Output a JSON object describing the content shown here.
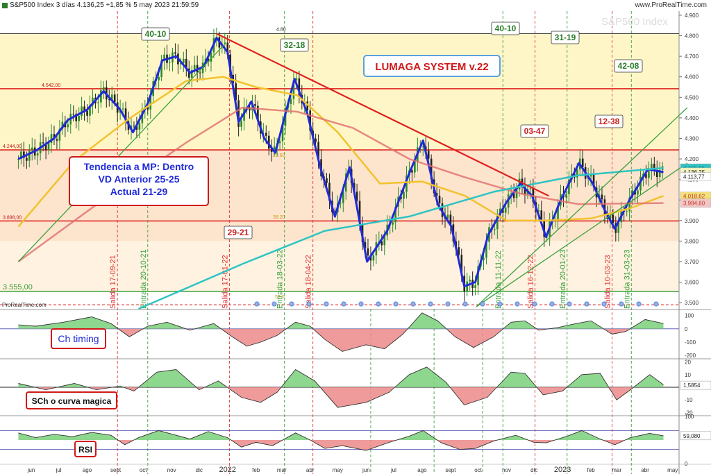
{
  "header": {
    "title": "S&P500 Index 3 días 4.136,25 +1,85 % 5 may 2023 21:59:59",
    "url": "www.ProRealTime.com",
    "watermark": "S&P500 Index"
  },
  "chart_data": {
    "type": "line",
    "instrument": "S&P500 Index",
    "timeframe": "3 días",
    "x_labels": [
      "jun",
      "jul",
      "ago",
      "sept",
      "oct",
      "nov",
      "dic",
      "2022",
      "feb",
      "mar",
      "abr",
      "may",
      "jun",
      "jul",
      "ago",
      "sept",
      "oct",
      "nov",
      "dic",
      "2023",
      "feb",
      "mar",
      "abr",
      "may"
    ],
    "y_ticks": [
      "3.500",
      "3.600",
      "3.700",
      "3.800",
      "3.900",
      "4.000",
      "4.100",
      "4.200",
      "4.300",
      "4.400",
      "4.500",
      "4.600",
      "4.700",
      "4.800",
      "4.900"
    ],
    "ylim": [
      3470,
      4920
    ],
    "price_tags": [
      "4.155,96",
      "4.136,25",
      "4.113,77",
      "4.018,62",
      "3.984,60"
    ],
    "horizontal_levels": [
      {
        "label": "4.542,00",
        "value": 4542
      },
      {
        "label": "4.244,00",
        "value": 4244
      },
      {
        "label": "3.898,00",
        "value": 3898
      },
      {
        "label": "3.555,00",
        "value": 3555
      }
    ],
    "inner_labels": [
      "4.80",
      "23.60",
      "38.20",
      "50.0"
    ],
    "price_series": [
      {
        "name": "",
        "color": "#1f2bd8",
        "values": [
          [
            "2021-06-01",
            4200
          ],
          [
            "2021-06-20",
            4240
          ],
          [
            "2021-07-10",
            4300
          ],
          [
            "2021-07-25",
            4390
          ],
          [
            "2021-08-15",
            4440
          ],
          [
            "2021-09-02",
            4530
          ],
          [
            "2021-09-20",
            4440
          ],
          [
            "2021-10-04",
            4330
          ],
          [
            "2021-10-20",
            4470
          ],
          [
            "2021-11-05",
            4680
          ],
          [
            "2021-11-20",
            4700
          ],
          [
            "2021-12-05",
            4620
          ],
          [
            "2021-12-20",
            4650
          ],
          [
            "2022-01-03",
            4790
          ],
          [
            "2022-01-15",
            4720
          ],
          [
            "2022-01-27",
            4380
          ],
          [
            "2022-02-10",
            4480
          ],
          [
            "2022-02-24",
            4300
          ],
          [
            "2022-03-08",
            4230
          ],
          [
            "2022-03-29",
            4590
          ],
          [
            "2022-04-12",
            4420
          ],
          [
            "2022-04-26",
            4160
          ],
          [
            "2022-05-12",
            3920
          ],
          [
            "2022-05-28",
            4160
          ],
          [
            "2022-06-16",
            3700
          ],
          [
            "2022-07-08",
            3850
          ],
          [
            "2022-08-01",
            4130
          ],
          [
            "2022-08-16",
            4290
          ],
          [
            "2022-09-01",
            3980
          ],
          [
            "2022-09-16",
            3870
          ],
          [
            "2022-09-30",
            3580
          ],
          [
            "2022-10-12",
            3600
          ],
          [
            "2022-10-26",
            3830
          ],
          [
            "2022-11-15",
            3990
          ],
          [
            "2022-11-30",
            4080
          ],
          [
            "2022-12-13",
            4020
          ],
          [
            "2022-12-28",
            3820
          ],
          [
            "2023-01-12",
            3990
          ],
          [
            "2023-02-02",
            4180
          ],
          [
            "2023-02-17",
            4080
          ],
          [
            "2023-03-01",
            3960
          ],
          [
            "2023-03-13",
            3860
          ],
          [
            "2023-03-29",
            4000
          ],
          [
            "2023-04-18",
            4150
          ],
          [
            "2023-05-05",
            4136
          ]
        ]
      },
      {
        "name": "",
        "color": "#f2c22e",
        "values": [
          [
            "2021-06-01",
            3870
          ],
          [
            "2021-08-01",
            4190
          ],
          [
            "2021-10-01",
            4400
          ],
          [
            "2021-12-01",
            4580
          ],
          [
            "2022-01-10",
            4600
          ],
          [
            "2022-02-15",
            4550
          ],
          [
            "2022-04-01",
            4510
          ],
          [
            "2022-05-15",
            4330
          ],
          [
            "2022-06-30",
            4080
          ],
          [
            "2022-08-15",
            4090
          ],
          [
            "2022-10-01",
            4020
          ],
          [
            "2022-11-15",
            3900
          ],
          [
            "2022-12-30",
            3900
          ],
          [
            "2023-02-15",
            3910
          ],
          [
            "2023-03-30",
            3960
          ],
          [
            "2023-05-05",
            4020
          ]
        ]
      },
      {
        "name": "",
        "color": "#e06e6e",
        "values": [
          [
            "2021-06-01",
            3700
          ],
          [
            "2021-09-01",
            4000
          ],
          [
            "2021-12-01",
            4280
          ],
          [
            "2022-01-31",
            4450
          ],
          [
            "2022-04-01",
            4430
          ],
          [
            "2022-06-01",
            4350
          ],
          [
            "2022-08-01",
            4200
          ],
          [
            "2022-10-01",
            4110
          ],
          [
            "2022-12-01",
            4030
          ],
          [
            "2023-02-01",
            3980
          ],
          [
            "2023-05-05",
            3985
          ]
        ]
      },
      {
        "name": "",
        "color": "#2ec4c4",
        "values": [
          [
            "2021-10-10",
            3470
          ],
          [
            "2022-02-01",
            3690
          ],
          [
            "2022-05-01",
            3850
          ],
          [
            "2022-08-01",
            3920
          ],
          [
            "2022-11-01",
            4040
          ],
          [
            "2023-02-01",
            4120
          ],
          [
            "2023-05-05",
            4156
          ]
        ]
      }
    ],
    "trendlines": [
      {
        "color": "#e02020",
        "from": [
          "2022-01-03",
          4810
        ],
        "to": [
          "2022-12-31",
          4020
        ]
      },
      {
        "color": "#3aa13a",
        "from": [
          "2022-10-13",
          3480
        ],
        "to": [
          "2023-05-31",
          4450
        ]
      },
      {
        "color": "#3aa13a",
        "from": [
          "2022-10-13",
          3480
        ],
        "to": [
          "2023-05-31",
          4180
        ]
      },
      {
        "color": "#3aa13a",
        "from": [
          "2021-06-01",
          3700
        ],
        "to": [
          "2022-01-10",
          4750
        ]
      }
    ],
    "vertical_markers": [
      {
        "label": "Salida 17-09-21",
        "date": "2021-09-17",
        "color": "#e03030"
      },
      {
        "label": "Entrada 20-10-21",
        "date": "2021-10-20",
        "color": "#3aa13a"
      },
      {
        "label": "Salida 17-01-22",
        "date": "2022-01-17",
        "color": "#e03030"
      },
      {
        "label": "Entrada 18-03-22",
        "date": "2022-03-18",
        "color": "#3aa13a"
      },
      {
        "label": "Salida 18-04-22",
        "date": "2022-04-18",
        "color": "#e03030"
      },
      {
        "label": "Entrada 11-11-22",
        "date": "2022-11-11",
        "color": "#3aa13a"
      },
      {
        "label": "Salida 16-12-22",
        "date": "2022-12-16",
        "color": "#e03030"
      },
      {
        "label": "Entrada 20-01-23",
        "date": "2023-01-20",
        "color": "#3aa13a"
      },
      {
        "label": "Salida 10-03-23",
        "date": "2023-03-10",
        "color": "#e03030"
      },
      {
        "label": "Entrada 31-03-23",
        "date": "2023-03-31",
        "color": "#3aa13a"
      }
    ],
    "cycle_markers": [
      "2022-06-20",
      "2022-08-28",
      "2022-10-20"
    ],
    "boxes": [
      {
        "text": "40-10",
        "color": "#2a7d2a"
      },
      {
        "text": "32-18",
        "color": "#2a7d2a"
      },
      {
        "text": "40-10",
        "color": "#2a7d2a"
      },
      {
        "text": "31-19",
        "color": "#2a7d2a"
      },
      {
        "text": "42-08",
        "color": "#2a7d2a"
      },
      {
        "text": "29-21",
        "color": "#c82020"
      },
      {
        "text": "03-47",
        "color": "#c82020"
      },
      {
        "text": "12-38",
        "color": "#c82020"
      }
    ],
    "title_box": {
      "text": "LUMAGA SYSTEM v.22",
      "color": "#d01818"
    },
    "info_box": {
      "lines": [
        "Tendencia a MP: Dentro",
        "VD Anterior 25-25",
        "Actual 21-29"
      ],
      "color": "#1f2bd8"
    },
    "watermark_small": "ProRealTime.com",
    "panels": [
      {
        "name": "Ch timing",
        "ticks": [
          "100",
          "0",
          "-100",
          "-200"
        ],
        "ylim": [
          -220,
          140
        ],
        "tag": "",
        "values": [
          [
            "2021-06-01",
            30
          ],
          [
            "2021-06-20",
            20
          ],
          [
            "2021-07-20",
            50
          ],
          [
            "2021-08-20",
            90
          ],
          [
            "2021-09-10",
            40
          ],
          [
            "2021-09-30",
            -60
          ],
          [
            "2021-10-20",
            20
          ],
          [
            "2021-11-10",
            50
          ],
          [
            "2021-12-05",
            -10
          ],
          [
            "2021-12-31",
            40
          ],
          [
            "2022-01-20",
            -60
          ],
          [
            "2022-02-05",
            -130
          ],
          [
            "2022-02-20",
            -100
          ],
          [
            "2022-03-10",
            -50
          ],
          [
            "2022-03-30",
            50
          ],
          [
            "2022-04-15",
            20
          ],
          [
            "2022-05-01",
            -80
          ],
          [
            "2022-05-20",
            -170
          ],
          [
            "2022-06-15",
            -120
          ],
          [
            "2022-07-05",
            -150
          ],
          [
            "2022-07-25",
            -40
          ],
          [
            "2022-08-15",
            120
          ],
          [
            "2022-09-01",
            60
          ],
          [
            "2022-09-20",
            -60
          ],
          [
            "2022-10-10",
            -140
          ],
          [
            "2022-11-01",
            -60
          ],
          [
            "2022-11-20",
            50
          ],
          [
            "2022-12-05",
            60
          ],
          [
            "2022-12-20",
            -10
          ],
          [
            "2023-01-10",
            10
          ],
          [
            "2023-01-30",
            40
          ],
          [
            "2023-02-15",
            60
          ],
          [
            "2023-03-10",
            -40
          ],
          [
            "2023-03-25",
            -20
          ],
          [
            "2023-04-15",
            70
          ],
          [
            "2023-05-05",
            40
          ]
        ]
      },
      {
        "name": "SCh o curva magica",
        "ticks": [
          "20",
          "10",
          "1,5854",
          "0",
          "-10",
          "-20"
        ],
        "ylim": [
          -22,
          22
        ],
        "tag": "1,5854",
        "values": [
          [
            "2021-06-01",
            3
          ],
          [
            "2021-07-01",
            -2
          ],
          [
            "2021-08-01",
            3
          ],
          [
            "2021-08-25",
            -2
          ],
          [
            "2021-09-20",
            1
          ],
          [
            "2021-10-05",
            -3
          ],
          [
            "2021-10-30",
            12
          ],
          [
            "2021-11-20",
            14
          ],
          [
            "2021-12-15",
            -2
          ],
          [
            "2022-01-05",
            5
          ],
          [
            "2022-01-30",
            -8
          ],
          [
            "2022-02-20",
            -12
          ],
          [
            "2022-03-10",
            -4
          ],
          [
            "2022-03-30",
            14
          ],
          [
            "2022-04-20",
            5
          ],
          [
            "2022-05-15",
            -16
          ],
          [
            "2022-06-15",
            -12
          ],
          [
            "2022-07-10",
            -4
          ],
          [
            "2022-08-01",
            10
          ],
          [
            "2022-08-20",
            16
          ],
          [
            "2022-09-10",
            4
          ],
          [
            "2022-09-30",
            -14
          ],
          [
            "2022-10-25",
            -8
          ],
          [
            "2022-11-20",
            12
          ],
          [
            "2022-12-05",
            11
          ],
          [
            "2022-12-25",
            -6
          ],
          [
            "2023-01-15",
            -3
          ],
          [
            "2023-02-05",
            10
          ],
          [
            "2023-02-25",
            11
          ],
          [
            "2023-03-15",
            -10
          ],
          [
            "2023-03-30",
            -2
          ],
          [
            "2023-04-20",
            10
          ],
          [
            "2023-05-05",
            2
          ]
        ]
      },
      {
        "name": "RSI",
        "ticks": [
          "100",
          "59,080",
          "0"
        ],
        "ylim": [
          0,
          100
        ],
        "tag": "59,080",
        "values": [
          [
            "2021-06-01",
            65
          ],
          [
            "2021-06-20",
            55
          ],
          [
            "2021-07-10",
            62
          ],
          [
            "2021-07-30",
            57
          ],
          [
            "2021-08-20",
            66
          ],
          [
            "2021-09-10",
            60
          ],
          [
            "2021-09-25",
            40
          ],
          [
            "2021-10-10",
            55
          ],
          [
            "2021-11-01",
            70
          ],
          [
            "2021-11-20",
            60
          ],
          [
            "2021-12-05",
            52
          ],
          [
            "2021-12-25",
            68
          ],
          [
            "2022-01-15",
            55
          ],
          [
            "2022-01-30",
            35
          ],
          [
            "2022-02-15",
            45
          ],
          [
            "2022-03-05",
            38
          ],
          [
            "2022-03-30",
            65
          ],
          [
            "2022-04-15",
            50
          ],
          [
            "2022-05-01",
            32
          ],
          [
            "2022-05-20",
            38
          ],
          [
            "2022-06-15",
            28
          ],
          [
            "2022-07-10",
            45
          ],
          [
            "2022-08-01",
            58
          ],
          [
            "2022-08-16",
            70
          ],
          [
            "2022-09-05",
            44
          ],
          [
            "2022-09-25",
            30
          ],
          [
            "2022-10-12",
            32
          ],
          [
            "2022-11-01",
            48
          ],
          [
            "2022-11-25",
            60
          ],
          [
            "2022-12-15",
            45
          ],
          [
            "2022-12-28",
            44
          ],
          [
            "2023-01-20",
            58
          ],
          [
            "2023-02-05",
            70
          ],
          [
            "2023-02-25",
            52
          ],
          [
            "2023-03-13",
            40
          ],
          [
            "2023-03-30",
            55
          ],
          [
            "2023-04-20",
            64
          ],
          [
            "2023-05-05",
            59
          ]
        ]
      }
    ]
  }
}
